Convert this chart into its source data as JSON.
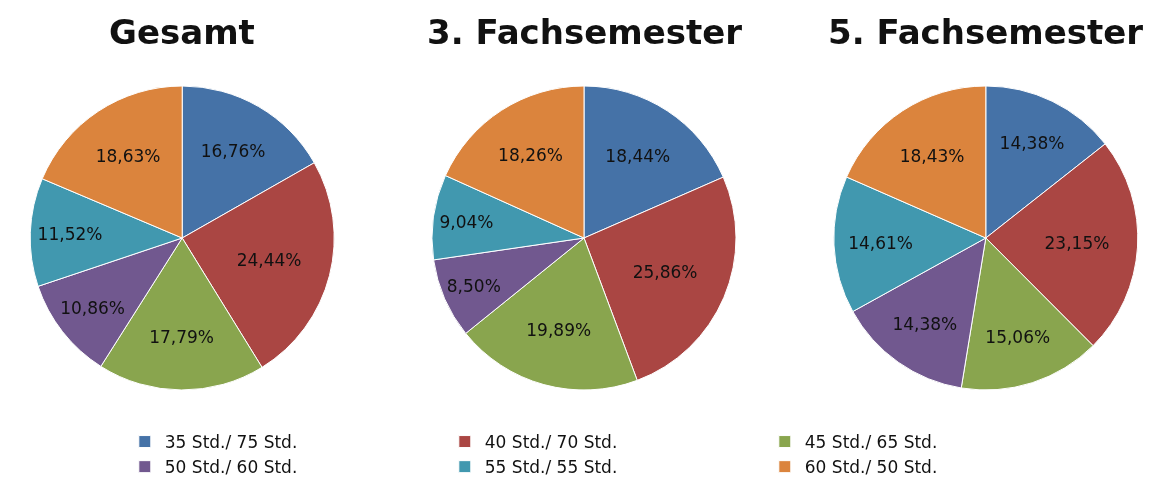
{
  "chart_data": [
    {
      "type": "pie",
      "title": "Gesamt",
      "categories": [
        "35 Std./ 75 Std.",
        "40 Std./ 70 Std.",
        "45 Std./ 65 Std.",
        "50 Std./ 60 Std.",
        "55 Std./ 55 Std.",
        "60 Std./ 50 Std."
      ],
      "values": [
        16.76,
        24.44,
        17.79,
        10.86,
        11.52,
        18.63
      ],
      "value_labels": [
        "16,76%",
        "24,44%",
        "17,79%",
        "10,86%",
        "11,52%",
        "18,63%"
      ],
      "colors": [
        "#4572a7",
        "#aa4643",
        "#89a54e",
        "#71588f",
        "#4198af",
        "#db843d"
      ],
      "legend": "bottom"
    },
    {
      "type": "pie",
      "title": "3. Fachsemester",
      "categories": [
        null,
        null,
        null,
        null,
        null,
        null
      ],
      "values": [
        18.44,
        25.86,
        19.89,
        8.5,
        9.04,
        18.26
      ],
      "value_labels": [
        "18,44%",
        "25,86%",
        "19,89%",
        "8,50%",
        "9,04%",
        "18,26%"
      ],
      "colors": [
        "#4572a7",
        "#aa4643",
        "#89a54e",
        "#71588f",
        "#4198af",
        "#db843d"
      ]
    },
    {
      "type": "pie",
      "title": "5. Fachsemester",
      "categories": [
        null,
        null,
        null,
        null,
        null,
        null
      ],
      "values": [
        14.38,
        23.15,
        15.06,
        14.38,
        14.61,
        18.43
      ],
      "value_labels": [
        "14,38%",
        "23,15%",
        "15,06%",
        "14,38%",
        "14,61%",
        "18,43%"
      ],
      "colors": [
        "#4572a7",
        "#aa4643",
        "#89a54e",
        "#71588f",
        "#4198af",
        "#db843d"
      ]
    }
  ]
}
